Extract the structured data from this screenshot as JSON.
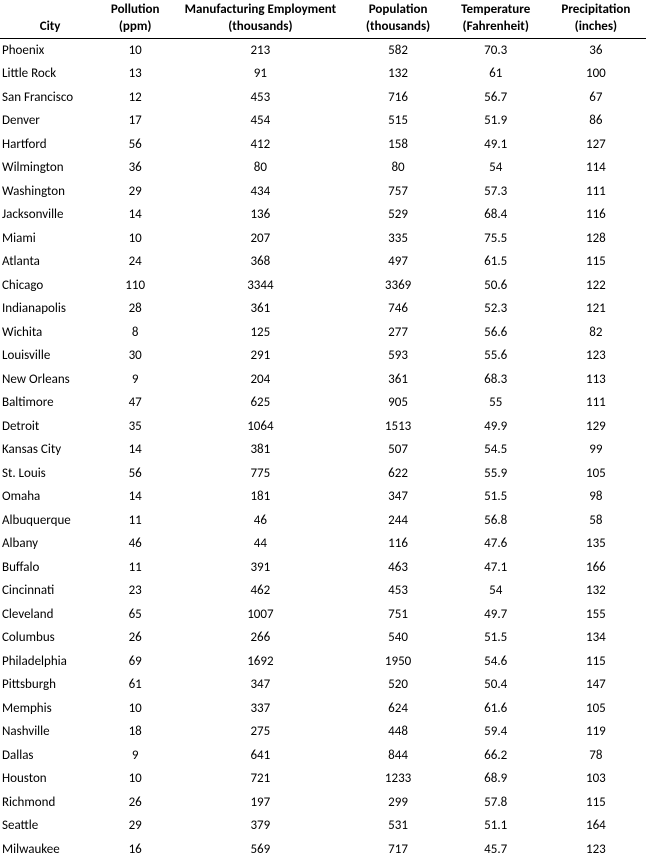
{
  "table": {
    "columns": [
      {
        "key": "city",
        "line1": "",
        "line2": "City",
        "class": "col-city",
        "header_class": "city-header"
      },
      {
        "key": "pollution",
        "line1": "Pollution",
        "line2": "(ppm)",
        "class": "col-pollution"
      },
      {
        "key": "mfg",
        "line1": "Manufacturing Employment",
        "line2": "(thousands)",
        "class": "col-mfg"
      },
      {
        "key": "pop",
        "line1": "Population",
        "line2": "(thousands)",
        "class": "col-pop"
      },
      {
        "key": "temp",
        "line1": "Temperature",
        "line2": "(Fahrenheit)",
        "class": "col-temp"
      },
      {
        "key": "precip",
        "line1": "Precipitation",
        "line2": "(inches)",
        "class": "col-precip"
      }
    ],
    "rows": [
      {
        "city": "Phoenix",
        "pollution": "10",
        "mfg": "213",
        "pop": "582",
        "temp": "70.3",
        "precip": "36"
      },
      {
        "city": "Little Rock",
        "pollution": "13",
        "mfg": "91",
        "pop": "132",
        "temp": "61",
        "precip": "100"
      },
      {
        "city": "San Francisco",
        "pollution": "12",
        "mfg": "453",
        "pop": "716",
        "temp": "56.7",
        "precip": "67"
      },
      {
        "city": "Denver",
        "pollution": "17",
        "mfg": "454",
        "pop": "515",
        "temp": "51.9",
        "precip": "86"
      },
      {
        "city": "Hartford",
        "pollution": "56",
        "mfg": "412",
        "pop": "158",
        "temp": "49.1",
        "precip": "127"
      },
      {
        "city": "Wilmington",
        "pollution": "36",
        "mfg": "80",
        "pop": "80",
        "temp": "54",
        "precip": "114"
      },
      {
        "city": "Washington",
        "pollution": "29",
        "mfg": "434",
        "pop": "757",
        "temp": "57.3",
        "precip": "111"
      },
      {
        "city": "Jacksonville",
        "pollution": "14",
        "mfg": "136",
        "pop": "529",
        "temp": "68.4",
        "precip": "116"
      },
      {
        "city": "Miami",
        "pollution": "10",
        "mfg": "207",
        "pop": "335",
        "temp": "75.5",
        "precip": "128"
      },
      {
        "city": "Atlanta",
        "pollution": "24",
        "mfg": "368",
        "pop": "497",
        "temp": "61.5",
        "precip": "115"
      },
      {
        "city": "Chicago",
        "pollution": "110",
        "mfg": "3344",
        "pop": "3369",
        "temp": "50.6",
        "precip": "122"
      },
      {
        "city": "Indianapolis",
        "pollution": "28",
        "mfg": "361",
        "pop": "746",
        "temp": "52.3",
        "precip": "121"
      },
      {
        "city": "Wichita",
        "pollution": "8",
        "mfg": "125",
        "pop": "277",
        "temp": "56.6",
        "precip": "82"
      },
      {
        "city": "Louisville",
        "pollution": "30",
        "mfg": "291",
        "pop": "593",
        "temp": "55.6",
        "precip": "123"
      },
      {
        "city": "New Orleans",
        "pollution": "9",
        "mfg": "204",
        "pop": "361",
        "temp": "68.3",
        "precip": "113"
      },
      {
        "city": "Baltimore",
        "pollution": "47",
        "mfg": "625",
        "pop": "905",
        "temp": "55",
        "precip": "111"
      },
      {
        "city": "Detroit",
        "pollution": "35",
        "mfg": "1064",
        "pop": "1513",
        "temp": "49.9",
        "precip": "129"
      },
      {
        "city": "Kansas City",
        "pollution": "14",
        "mfg": "381",
        "pop": "507",
        "temp": "54.5",
        "precip": "99"
      },
      {
        "city": "St. Louis",
        "pollution": "56",
        "mfg": "775",
        "pop": "622",
        "temp": "55.9",
        "precip": "105"
      },
      {
        "city": "Omaha",
        "pollution": "14",
        "mfg": "181",
        "pop": "347",
        "temp": "51.5",
        "precip": "98"
      },
      {
        "city": "Albuquerque",
        "pollution": "11",
        "mfg": "46",
        "pop": "244",
        "temp": "56.8",
        "precip": "58"
      },
      {
        "city": "Albany",
        "pollution": "46",
        "mfg": "44",
        "pop": "116",
        "temp": "47.6",
        "precip": "135"
      },
      {
        "city": "Buffalo",
        "pollution": "11",
        "mfg": "391",
        "pop": "463",
        "temp": "47.1",
        "precip": "166"
      },
      {
        "city": "Cincinnati",
        "pollution": "23",
        "mfg": "462",
        "pop": "453",
        "temp": "54",
        "precip": "132"
      },
      {
        "city": "Cleveland",
        "pollution": "65",
        "mfg": "1007",
        "pop": "751",
        "temp": "49.7",
        "precip": "155"
      },
      {
        "city": "Columbus",
        "pollution": "26",
        "mfg": "266",
        "pop": "540",
        "temp": "51.5",
        "precip": "134"
      },
      {
        "city": "Philadelphia",
        "pollution": "69",
        "mfg": "1692",
        "pop": "1950",
        "temp": "54.6",
        "precip": "115"
      },
      {
        "city": "Pittsburgh",
        "pollution": "61",
        "mfg": "347",
        "pop": "520",
        "temp": "50.4",
        "precip": "147"
      },
      {
        "city": "Memphis",
        "pollution": "10",
        "mfg": "337",
        "pop": "624",
        "temp": "61.6",
        "precip": "105"
      },
      {
        "city": "Nashville",
        "pollution": "18",
        "mfg": "275",
        "pop": "448",
        "temp": "59.4",
        "precip": "119"
      },
      {
        "city": "Dallas",
        "pollution": "9",
        "mfg": "641",
        "pop": "844",
        "temp": "66.2",
        "precip": "78"
      },
      {
        "city": "Houston",
        "pollution": "10",
        "mfg": "721",
        "pop": "1233",
        "temp": "68.9",
        "precip": "103"
      },
      {
        "city": "Richmond",
        "pollution": "26",
        "mfg": "197",
        "pop": "299",
        "temp": "57.8",
        "precip": "115"
      },
      {
        "city": "Seattle",
        "pollution": "29",
        "mfg": "379",
        "pop": "531",
        "temp": "51.1",
        "precip": "164"
      },
      {
        "city": "Milwaukee",
        "pollution": "16",
        "mfg": "569",
        "pop": "717",
        "temp": "45.7",
        "precip": "123"
      }
    ]
  }
}
